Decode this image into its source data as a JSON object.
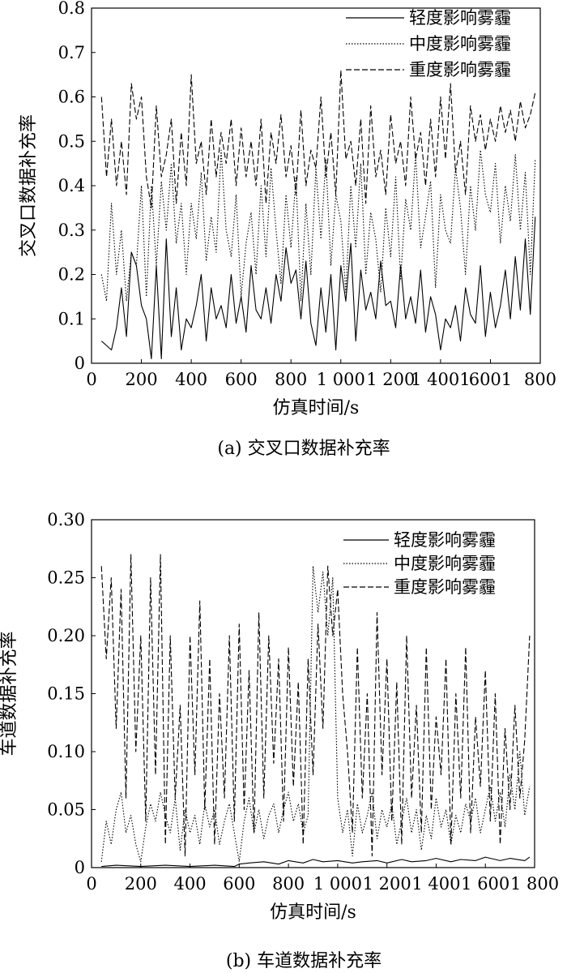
{
  "figure": {
    "caption_a": "(a)  交叉口数据补充率",
    "caption_b": "(b)  车道数据补充率"
  },
  "chart_data": [
    {
      "type": "line",
      "title": "交叉口数据补充率",
      "xlabel": "仿真时间/s",
      "ylabel": "交叉口数据补充率",
      "xlim": [
        0,
        1800
      ],
      "ylim": [
        0,
        0.8
      ],
      "xticks": [
        "0",
        "200",
        "400",
        "600",
        "800",
        "1 000",
        "1 200",
        "1 4001",
        "6001",
        "800"
      ],
      "yticks": [
        "0",
        "0.1",
        "0.2",
        "0.3",
        "0.4",
        "0.5",
        "0.6",
        "0.7",
        "0.8"
      ],
      "legend_position": "top-right",
      "series": [
        {
          "name": "轻度影响雾霾",
          "style": "solid",
          "x": [
            40,
            60,
            80,
            100,
            120,
            140,
            160,
            180,
            200,
            220,
            240,
            260,
            280,
            300,
            320,
            340,
            360,
            380,
            400,
            420,
            440,
            460,
            480,
            500,
            520,
            540,
            560,
            580,
            600,
            620,
            640,
            660,
            680,
            700,
            720,
            740,
            760,
            780,
            800,
            820,
            840,
            860,
            880,
            900,
            920,
            940,
            960,
            980,
            1000,
            1020,
            1040,
            1060,
            1080,
            1100,
            1120,
            1140,
            1160,
            1180,
            1200,
            1220,
            1240,
            1260,
            1280,
            1300,
            1320,
            1340,
            1360,
            1380,
            1400,
            1420,
            1440,
            1460,
            1480,
            1500,
            1520,
            1540,
            1560,
            1580,
            1600,
            1620,
            1640,
            1660,
            1680,
            1700,
            1720,
            1740,
            1760,
            1780
          ],
          "values": [
            0.05,
            0.04,
            0.03,
            0.08,
            0.17,
            0.06,
            0.25,
            0.22,
            0.13,
            0.1,
            0.01,
            0.22,
            0.01,
            0.28,
            0.06,
            0.17,
            0.03,
            0.1,
            0.08,
            0.13,
            0.2,
            0.05,
            0.17,
            0.1,
            0.13,
            0.08,
            0.2,
            0.09,
            0.15,
            0.07,
            0.22,
            0.12,
            0.1,
            0.17,
            0.09,
            0.2,
            0.14,
            0.26,
            0.18,
            0.21,
            0.1,
            0.23,
            0.09,
            0.04,
            0.17,
            0.07,
            0.2,
            0.03,
            0.22,
            0.14,
            0.27,
            0.05,
            0.21,
            0.12,
            0.16,
            0.1,
            0.23,
            0.13,
            0.14,
            0.08,
            0.22,
            0.1,
            0.15,
            0.09,
            0.21,
            0.07,
            0.15,
            0.11,
            0.03,
            0.1,
            0.08,
            0.13,
            0.05,
            0.17,
            0.11,
            0.09,
            0.22,
            0.06,
            0.16,
            0.08,
            0.13,
            0.21,
            0.1,
            0.24,
            0.12,
            0.28,
            0.11,
            0.33
          ]
        },
        {
          "name": "中度影响雾霾",
          "style": "dotted",
          "x": [
            40,
            60,
            80,
            100,
            120,
            140,
            160,
            180,
            200,
            220,
            240,
            260,
            280,
            300,
            320,
            340,
            360,
            380,
            400,
            420,
            440,
            460,
            480,
            500,
            520,
            540,
            560,
            580,
            600,
            620,
            640,
            660,
            680,
            700,
            720,
            740,
            760,
            780,
            800,
            820,
            840,
            860,
            880,
            900,
            920,
            940,
            960,
            980,
            1000,
            1020,
            1040,
            1060,
            1080,
            1100,
            1120,
            1140,
            1160,
            1180,
            1200,
            1220,
            1240,
            1260,
            1280,
            1300,
            1320,
            1340,
            1360,
            1380,
            1400,
            1420,
            1440,
            1460,
            1480,
            1500,
            1520,
            1540,
            1560,
            1580,
            1600,
            1620,
            1640,
            1660,
            1680,
            1700,
            1720,
            1740,
            1760,
            1780
          ],
          "values": [
            0.2,
            0.14,
            0.36,
            0.2,
            0.3,
            0.14,
            0.25,
            0.22,
            0.4,
            0.15,
            0.4,
            0.22,
            0.41,
            0.3,
            0.45,
            0.27,
            0.36,
            0.2,
            0.36,
            0.28,
            0.43,
            0.23,
            0.33,
            0.25,
            0.48,
            0.3,
            0.24,
            0.38,
            0.15,
            0.27,
            0.34,
            0.2,
            0.4,
            0.24,
            0.44,
            0.3,
            0.18,
            0.38,
            0.26,
            0.42,
            0.14,
            0.36,
            0.2,
            0.44,
            0.28,
            0.46,
            0.22,
            0.38,
            0.32,
            0.16,
            0.4,
            0.26,
            0.45,
            0.2,
            0.34,
            0.28,
            0.16,
            0.35,
            0.24,
            0.42,
            0.19,
            0.37,
            0.3,
            0.47,
            0.26,
            0.33,
            0.41,
            0.17,
            0.38,
            0.3,
            0.27,
            0.44,
            0.35,
            0.2,
            0.4,
            0.3,
            0.48,
            0.38,
            0.34,
            0.45,
            0.27,
            0.4,
            0.32,
            0.47,
            0.3,
            0.43,
            0.2,
            0.46
          ]
        },
        {
          "name": "重度影响雾霾",
          "style": "dashed",
          "x": [
            40,
            60,
            80,
            100,
            120,
            140,
            160,
            180,
            200,
            220,
            240,
            260,
            280,
            300,
            320,
            340,
            360,
            380,
            400,
            420,
            440,
            460,
            480,
            500,
            520,
            540,
            560,
            580,
            600,
            620,
            640,
            660,
            680,
            700,
            720,
            740,
            760,
            780,
            800,
            820,
            840,
            860,
            880,
            900,
            920,
            940,
            960,
            980,
            1000,
            1020,
            1040,
            1060,
            1080,
            1100,
            1120,
            1140,
            1160,
            1180,
            1200,
            1220,
            1240,
            1260,
            1280,
            1300,
            1320,
            1340,
            1360,
            1380,
            1400,
            1420,
            1440,
            1460,
            1480,
            1500,
            1520,
            1540,
            1560,
            1580,
            1600,
            1620,
            1640,
            1660,
            1680,
            1700,
            1720,
            1740,
            1760,
            1780
          ],
          "values": [
            0.6,
            0.42,
            0.55,
            0.4,
            0.5,
            0.38,
            0.63,
            0.55,
            0.6,
            0.42,
            0.35,
            0.58,
            0.42,
            0.47,
            0.55,
            0.36,
            0.52,
            0.4,
            0.65,
            0.45,
            0.5,
            0.38,
            0.55,
            0.42,
            0.52,
            0.45,
            0.55,
            0.4,
            0.53,
            0.42,
            0.5,
            0.4,
            0.55,
            0.36,
            0.52,
            0.45,
            0.56,
            0.42,
            0.49,
            0.38,
            0.57,
            0.4,
            0.48,
            0.44,
            0.6,
            0.42,
            0.52,
            0.38,
            0.66,
            0.46,
            0.5,
            0.4,
            0.55,
            0.36,
            0.58,
            0.42,
            0.48,
            0.38,
            0.56,
            0.45,
            0.5,
            0.4,
            0.6,
            0.46,
            0.52,
            0.4,
            0.55,
            0.42,
            0.6,
            0.46,
            0.63,
            0.43,
            0.5,
            0.38,
            0.58,
            0.5,
            0.56,
            0.48,
            0.55,
            0.5,
            0.58,
            0.52,
            0.57,
            0.5,
            0.59,
            0.53,
            0.56,
            0.61
          ]
        }
      ]
    },
    {
      "type": "line",
      "title": "车道数据补充率",
      "xlabel": "仿真时间/s",
      "ylabel": "车道数据补充率",
      "xlim": [
        0,
        1800
      ],
      "ylim": [
        0,
        0.3
      ],
      "xticks": [
        "0",
        "200",
        "400",
        "600",
        "800",
        "1 000",
        "1 200",
        "1 400",
        "1 600",
        "1 800"
      ],
      "yticks": [
        "0",
        "0.05",
        "0.10",
        "0.15",
        "0.20",
        "0.25",
        "0.30"
      ],
      "legend_position": "top-right",
      "series": [
        {
          "name": "轻度影响雾霾",
          "style": "solid",
          "x": [
            40,
            100,
            200,
            300,
            400,
            500,
            580,
            600,
            640,
            700,
            760,
            800,
            860,
            900,
            940,
            1000,
            1060,
            1100,
            1160,
            1200,
            1260,
            1300,
            1360,
            1400,
            1460,
            1500,
            1560,
            1600,
            1660,
            1700,
            1760,
            1780
          ],
          "values": [
            0.001,
            0.002,
            0.001,
            0.002,
            0.001,
            0.002,
            0.001,
            0.003,
            0.004,
            0.005,
            0.003,
            0.006,
            0.004,
            0.007,
            0.005,
            0.006,
            0.004,
            0.005,
            0.006,
            0.004,
            0.007,
            0.005,
            0.006,
            0.008,
            0.005,
            0.007,
            0.006,
            0.009,
            0.006,
            0.008,
            0.006,
            0.009
          ]
        },
        {
          "name": "中度影响雾霾",
          "style": "dotted",
          "x": [
            40,
            60,
            80,
            100,
            120,
            140,
            160,
            180,
            200,
            220,
            240,
            260,
            280,
            300,
            320,
            340,
            360,
            380,
            400,
            420,
            440,
            460,
            480,
            500,
            520,
            540,
            560,
            580,
            600,
            620,
            640,
            660,
            680,
            700,
            720,
            740,
            760,
            780,
            800,
            820,
            840,
            860,
            880,
            900,
            920,
            940,
            960,
            980,
            1000,
            1020,
            1040,
            1060,
            1080,
            1100,
            1120,
            1140,
            1160,
            1180,
            1200,
            1220,
            1240,
            1260,
            1280,
            1300,
            1320,
            1340,
            1360,
            1380,
            1400,
            1420,
            1440,
            1460,
            1480,
            1500,
            1520,
            1540,
            1560,
            1580,
            1600,
            1620,
            1640,
            1660,
            1680,
            1700,
            1720,
            1740,
            1760,
            1780
          ],
          "values": [
            0.005,
            0.04,
            0.02,
            0.05,
            0.065,
            0.03,
            0.045,
            0.02,
            0.005,
            0.035,
            0.055,
            0.04,
            0.065,
            0.045,
            0.03,
            0.06,
            0.015,
            0.05,
            0.03,
            0.045,
            0.02,
            0.055,
            0.035,
            0.05,
            0.02,
            0.04,
            0.055,
            0.03,
            0.005,
            0.04,
            0.06,
            0.03,
            0.05,
            0.025,
            0.045,
            0.055,
            0.03,
            0.05,
            0.065,
            0.04,
            0.055,
            0.03,
            0.045,
            0.26,
            0.22,
            0.255,
            0.2,
            0.25,
            0.06,
            0.03,
            0.05,
            0.01,
            0.055,
            0.03,
            0.045,
            0.065,
            0.025,
            0.05,
            0.035,
            0.055,
            0.02,
            0.04,
            0.06,
            0.03,
            0.05,
            0.015,
            0.045,
            0.025,
            0.06,
            0.035,
            0.05,
            0.02,
            0.045,
            0.03,
            0.055,
            0.04,
            0.06,
            0.03,
            0.05,
            0.07,
            0.04,
            0.065,
            0.035,
            0.08,
            0.05,
            0.1,
            0.045,
            0.07
          ]
        },
        {
          "name": "重度影响雾霾",
          "style": "dashed",
          "x": [
            40,
            60,
            80,
            100,
            120,
            140,
            160,
            180,
            200,
            220,
            240,
            260,
            280,
            300,
            320,
            340,
            360,
            380,
            400,
            420,
            440,
            460,
            480,
            500,
            520,
            540,
            560,
            580,
            600,
            620,
            640,
            660,
            680,
            700,
            720,
            740,
            760,
            780,
            800,
            820,
            840,
            860,
            880,
            900,
            920,
            940,
            960,
            980,
            1000,
            1020,
            1040,
            1060,
            1080,
            1100,
            1120,
            1140,
            1160,
            1180,
            1200,
            1220,
            1240,
            1260,
            1280,
            1300,
            1320,
            1340,
            1360,
            1380,
            1400,
            1420,
            1440,
            1460,
            1480,
            1500,
            1520,
            1540,
            1560,
            1580,
            1600,
            1620,
            1640,
            1660,
            1680,
            1700,
            1720,
            1740,
            1760,
            1780
          ],
          "values": [
            0.26,
            0.18,
            0.25,
            0.12,
            0.24,
            0.06,
            0.27,
            0.1,
            0.2,
            0.04,
            0.25,
            0.08,
            0.27,
            0.02,
            0.2,
            0.06,
            0.14,
            0.01,
            0.2,
            0.08,
            0.23,
            0.05,
            0.18,
            0.02,
            0.15,
            0.06,
            0.2,
            0.04,
            0.21,
            0.05,
            0.17,
            0.03,
            0.22,
            0.06,
            0.2,
            0.09,
            0.18,
            0.04,
            0.19,
            0.07,
            0.16,
            0.02,
            0.18,
            0.08,
            0.21,
            0.12,
            0.26,
            0.2,
            0.24,
            0.15,
            0.1,
            0.03,
            0.19,
            0.06,
            0.15,
            0.01,
            0.22,
            0.08,
            0.18,
            0.04,
            0.16,
            0.02,
            0.2,
            0.06,
            0.14,
            0.03,
            0.19,
            0.05,
            0.13,
            0.08,
            0.18,
            0.02,
            0.15,
            0.06,
            0.19,
            0.03,
            0.13,
            0.07,
            0.17,
            0.04,
            0.15,
            0.02,
            0.12,
            0.05,
            0.14,
            0.06,
            0.11,
            0.2
          ]
        }
      ]
    }
  ]
}
